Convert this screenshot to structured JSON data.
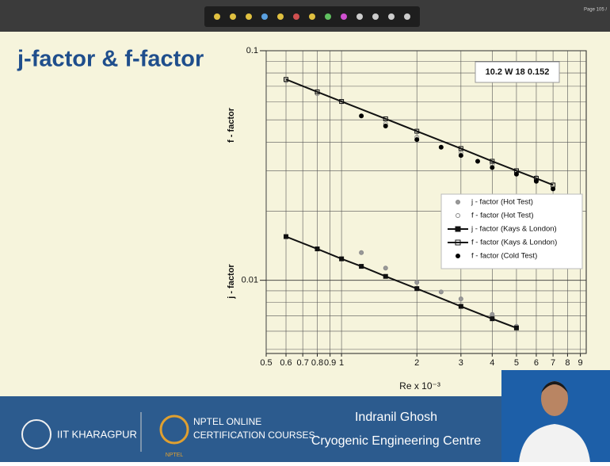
{
  "slide": {
    "title": "j-factor & f-factor",
    "page": "Page 105 /"
  },
  "footer": {
    "institute": "IIT KHARAGPUR",
    "nptel_line1": "NPTEL ONLINE",
    "nptel_line2": "CERTIFICATION COURSES",
    "nptel_logo": "NPTEL",
    "speaker": "Indranil Ghosh",
    "department": "Cryogenic Engineering Centre"
  },
  "chart_data": {
    "type": "scatter",
    "xscale": "log",
    "yscale": "log",
    "grid": true,
    "legend": "center right",
    "xlabel": "Re x 10⁻³",
    "ylabel": [
      "f - factor",
      "j - factor"
    ],
    "annotation": "10.2 W 18 0.152",
    "xlim": [
      0.5,
      9.5
    ],
    "ylim": [
      0.0048,
      0.1
    ],
    "xticks": [
      0.5,
      0.6,
      0.7,
      0.8,
      0.9,
      1,
      2,
      3,
      4,
      5,
      6,
      7,
      8,
      9
    ],
    "yticks": [
      0.01,
      0.1
    ],
    "yminorticks": [
      0.005,
      0.006,
      0.007,
      0.008,
      0.009,
      0.02,
      0.03,
      0.04,
      0.05,
      0.06,
      0.07,
      0.08,
      0.09
    ],
    "series": [
      {
        "name": "j - factor (Hot Test)",
        "color": "#888888",
        "marker": "circle",
        "fill": "#999999",
        "line": false,
        "x": [
          1.2,
          1.5,
          2,
          2.5,
          3,
          4,
          5
        ],
        "values": [
          0.0132,
          0.0113,
          0.0098,
          0.0089,
          0.0083,
          0.0071,
          0.0063
        ]
      },
      {
        "name": "f - factor (Hot Test)",
        "color": "#888888",
        "marker": "circle",
        "fill": "none",
        "line": false,
        "x": [
          0.6,
          0.8,
          1,
          1.5,
          2,
          3,
          4,
          5,
          6
        ],
        "values": [
          0.074,
          0.065,
          0.06,
          0.048,
          0.042,
          0.036,
          0.032,
          0.03,
          0.028
        ]
      },
      {
        "name": "j - factor (Kays & London)",
        "color": "#111111",
        "marker": "square",
        "fill": "#111111",
        "line": true,
        "x": [
          0.6,
          0.8,
          1,
          1.2,
          1.5,
          2,
          3,
          4,
          5
        ],
        "values": [
          0.0155,
          0.0137,
          0.0124,
          0.0115,
          0.0104,
          0.0092,
          0.0077,
          0.0068,
          0.0062
        ]
      },
      {
        "name": "f - factor (Kays & London)",
        "color": "#111111",
        "marker": "square",
        "fill": "none",
        "line": true,
        "x": [
          0.6,
          0.8,
          1,
          1.5,
          2,
          3,
          4,
          5,
          6,
          7
        ],
        "values": [
          0.075,
          0.0662,
          0.0601,
          0.0505,
          0.0446,
          0.0375,
          0.033,
          0.03,
          0.0278,
          0.026
        ]
      },
      {
        "name": "f - factor (Cold Test)",
        "color": "#000000",
        "marker": "circle",
        "fill": "#000000",
        "line": false,
        "x": [
          1.2,
          1.5,
          2,
          2.5,
          3,
          3.5,
          4,
          5,
          6,
          7
        ],
        "values": [
          0.052,
          0.047,
          0.041,
          0.038,
          0.035,
          0.033,
          0.031,
          0.029,
          0.027,
          0.025
        ]
      }
    ]
  }
}
